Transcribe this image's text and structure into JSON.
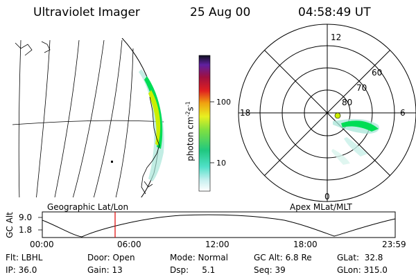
{
  "header": {
    "instrument": "Ultraviolet Imager",
    "date": "25 Aug 00",
    "time": "04:58:49 UT"
  },
  "colorbar": {
    "unit_label": "photon cm",
    "unit_exp1": "-2",
    "unit_mid": "s",
    "unit_exp2": "-1",
    "tick_100": "100",
    "tick_10": "10"
  },
  "polar_plot": {
    "mlt_top": "12",
    "mlt_left": "18",
    "mlt_right": "6",
    "mlt_bottom": "0",
    "lat_60": "60",
    "lat_70": "70",
    "lat_80": "80"
  },
  "orbit_plot": {
    "left_label": "Geographic Lat/Lon",
    "right_label": "Apex MLat/MLT",
    "y_axis_label": "GC Alt",
    "y_max": "9.0",
    "y_min": "1.8",
    "x_ticks": [
      "00:00",
      "06:00",
      "12:00",
      "18:00",
      "23:59"
    ]
  },
  "info": {
    "flt": "Flt: LBHL",
    "ip": "IP: 36.0",
    "door": "Door: Open",
    "gain": "Gain: 13",
    "mode": "Mode: Normal",
    "dsp": "Dsp:     5.1",
    "gc_alt": "GC Alt: 6.8 Re",
    "seq": "Seq: 39",
    "glat": "GLat:  32.8",
    "glon": "GLon: 315.0"
  },
  "colors": {
    "marker": "#e00000",
    "aurora_bright": "#00dd55",
    "aurora_core": "#ccee00",
    "aurora_dim": "#a8e6d8"
  }
}
